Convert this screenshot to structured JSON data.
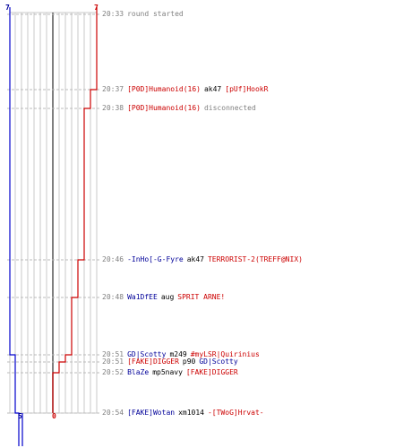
{
  "score": {
    "ct_top": "7",
    "t_top": "7",
    "ct_bottom": "5",
    "t_bottom": "0"
  },
  "colors": {
    "ct": "#0000cc",
    "t": "#cc0000",
    "grid": "#c8c8c8",
    "center": "#555555",
    "dash": "#bbbbbb"
  },
  "events": [
    {
      "time": "20:33",
      "parts": [
        {
          "text": "round started",
          "c": "gray"
        }
      ]
    },
    {
      "time": "20:37",
      "parts": [
        {
          "text": "[P0D]Humanoid(16)",
          "c": "red"
        },
        {
          "text": "ak47",
          "c": "black"
        },
        {
          "text": "[pUf]HookR",
          "c": "red"
        }
      ]
    },
    {
      "time": "20:38",
      "parts": [
        {
          "text": "[P0D]Humanoid(16)",
          "c": "red"
        },
        {
          "text": "disconnected",
          "c": "gray"
        }
      ]
    },
    {
      "time": "20:46",
      "parts": [
        {
          "text": "-InHo[-G-Fyre",
          "c": "blue"
        },
        {
          "text": "ak47",
          "c": "black"
        },
        {
          "text": "TERRORIST-2(TREFF@NIX)",
          "c": "red"
        }
      ]
    },
    {
      "time": "20:48",
      "parts": [
        {
          "text": "Wa1DfEE",
          "c": "blue"
        },
        {
          "text": "aug",
          "c": "black"
        },
        {
          "text": "SPRIT ARNE!",
          "c": "red"
        }
      ]
    },
    {
      "time": "20:51",
      "parts": [
        {
          "text": "GD|Scotty",
          "c": "blue"
        },
        {
          "text": "m249",
          "c": "black"
        },
        {
          "text": "#myLSR|Quirinius",
          "c": "red"
        }
      ]
    },
    {
      "time": "20:51",
      "parts": [
        {
          "text": "[FAKE]DIGGER",
          "c": "red"
        },
        {
          "text": "p90",
          "c": "black"
        },
        {
          "text": "GD|Scotty",
          "c": "blue"
        }
      ]
    },
    {
      "time": "20:52",
      "parts": [
        {
          "text": "BlaZe",
          "c": "blue"
        },
        {
          "text": "mp5navy",
          "c": "black"
        },
        {
          "text": "[FAKE]DIGGER",
          "c": "red"
        }
      ]
    },
    {
      "time": "20:54",
      "parts": [
        {
          "text": "[FAKE]Wotan",
          "c": "blue"
        },
        {
          "text": "xm1014",
          "c": "black"
        },
        {
          "text": "-[TWoG]Hrvat-",
          "c": "red"
        }
      ]
    }
  ]
}
